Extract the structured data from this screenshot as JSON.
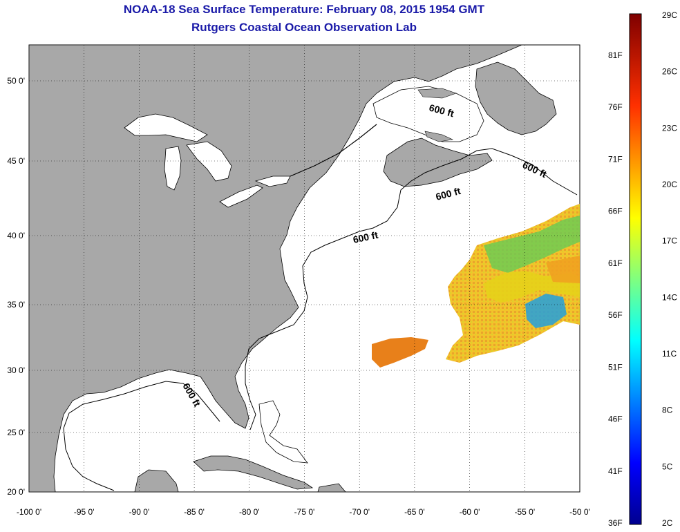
{
  "title": "NOAA-18 Sea Surface Temperature:  February 08, 2015 1954 GMT",
  "subtitle": "Rutgers Coastal Ocean Observation Lab",
  "map": {
    "lon_range": [
      -100,
      -50
    ],
    "lat_range": [
      20,
      52
    ],
    "lon_ticks": [
      "-100 0'",
      "-95 0'",
      "-90 0'",
      "-85 0'",
      "-80 0'",
      "-75 0'",
      "-70 0'",
      "-65 0'",
      "-60 0'",
      "-55 0'",
      "-50 0'"
    ],
    "lat_ticks": [
      "50 0'",
      "45 0'",
      "40 0'",
      "35 0'",
      "30 0'",
      "25 0'",
      "20 0'"
    ],
    "grid": true,
    "land_color": "#a8a8a8",
    "water_color": "#ffffff",
    "depth_contour_label": "600 ft"
  },
  "colorbar": {
    "unit_min_c": "2C",
    "unit_max_c": "29C",
    "celsius_labels": [
      "29C",
      "26C",
      "23C",
      "20C",
      "17C",
      "14C",
      "11C",
      "8C",
      "5C",
      "2C"
    ],
    "fahrenheit_labels": [
      "81F",
      "76F",
      "71F",
      "66F",
      "61F",
      "56F",
      "51F",
      "46F",
      "41F",
      "36F"
    ]
  }
}
